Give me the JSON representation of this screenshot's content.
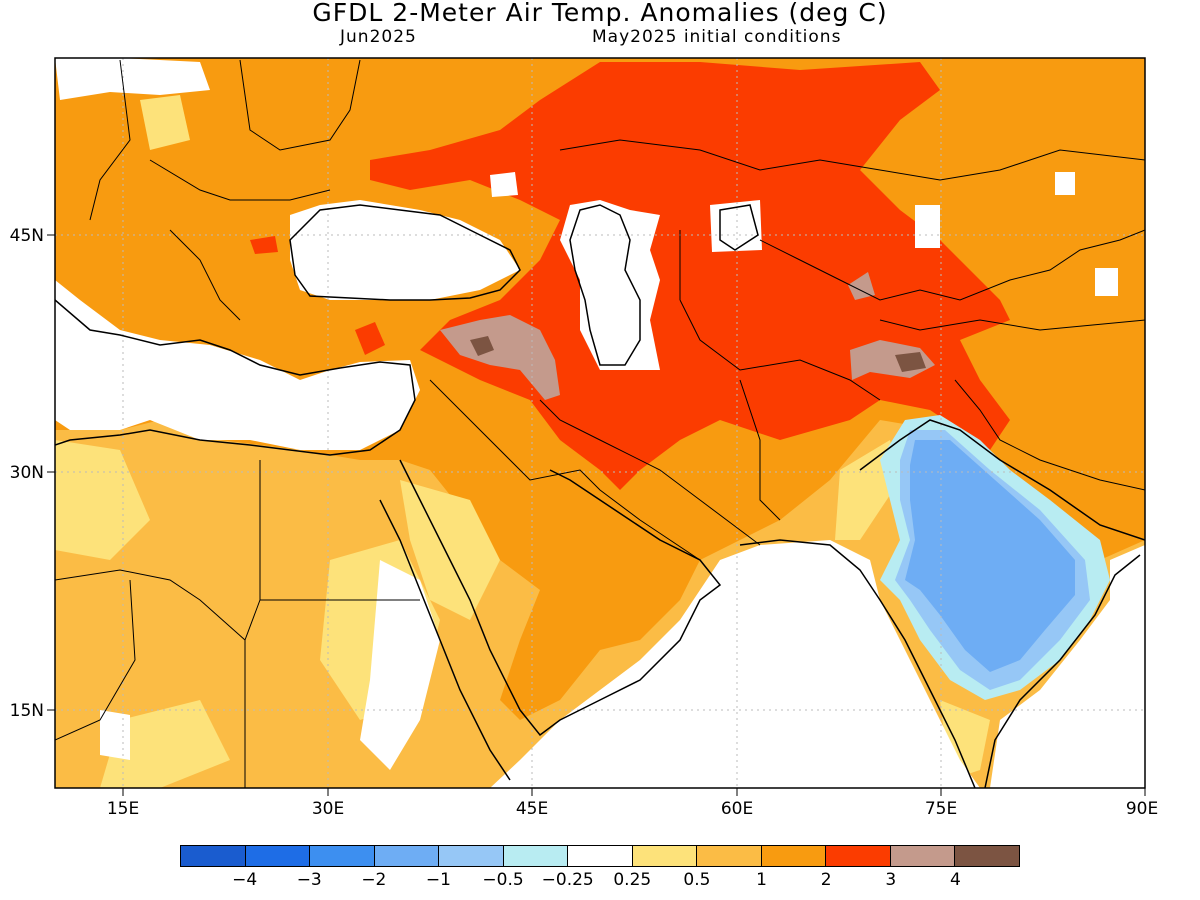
{
  "title": "GFDL 2-Meter Air Temp. Anomalies (deg C)",
  "subtitle_left": "Jun2025",
  "subtitle_right": "May2025 initial conditions",
  "lon_labels": [
    "15E",
    "30E",
    "45E",
    "60E",
    "75E",
    "90E"
  ],
  "lat_labels": [
    "45N",
    "30N",
    "15N"
  ],
  "colorbar": {
    "colors": [
      "#1a5ccf",
      "#1e6de6",
      "#3d8ff0",
      "#6eadf4",
      "#96c7f6",
      "#b8ecf2",
      "#ffffff",
      "#fde27a",
      "#fbbc45",
      "#f89b10",
      "#fb3c00",
      "#c49a8c",
      "#7c5442"
    ],
    "labels": [
      "−4",
      "−3",
      "−2",
      "−1",
      "−0.5",
      "−0.25",
      "0.25",
      "0.5",
      "1",
      "2",
      "3",
      "4"
    ]
  }
}
